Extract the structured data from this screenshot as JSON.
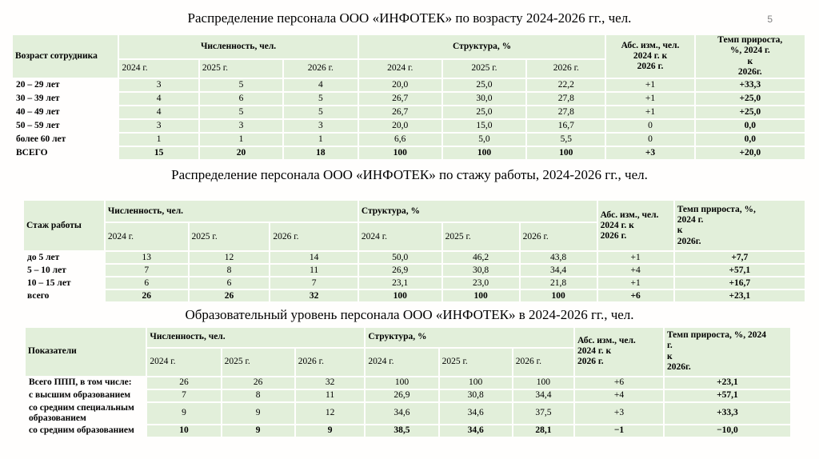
{
  "slide": {
    "page_number": "5",
    "background_color": "#fffefd",
    "cell_color": "#e2efda",
    "text_color": "#000000"
  },
  "tables": [
    {
      "title": "Распределение персонала ООО «ИНФОТЕК» по возрасту 2024-2026 гг., чел.",
      "label_header": "Возраст сотрудника",
      "group_count": "Численность, чел.",
      "group_structure": "Структура, %",
      "group_abs": "Абс. изм., чел.\n2024 г. к\n2026 г.",
      "group_rate": "Темп прироста,\n%, 2024 г.\nк\n2026г.",
      "years": [
        "2024 г.",
        "2025 г.",
        "2026 г.",
        "2024 г.",
        "2025 г.",
        "2026 г."
      ],
      "rows": [
        {
          "label": "20 – 29 лет",
          "values": [
            "3",
            "5",
            "4",
            "20,0",
            "25,0",
            "22,2",
            "+1",
            "+33,3"
          ],
          "bold": false
        },
        {
          "label": "30 – 39 лет",
          "values": [
            "4",
            "6",
            "5",
            "26,7",
            "30,0",
            "27,8",
            "+1",
            "+25,0"
          ],
          "bold": false
        },
        {
          "label": "40 – 49 лет",
          "values": [
            "4",
            "5",
            "5",
            "26,7",
            "25,0",
            "27,8",
            "+1",
            "+25,0"
          ],
          "bold": false
        },
        {
          "label": "50 – 59 лет",
          "values": [
            "3",
            "3",
            "3",
            "20,0",
            "15,0",
            "16,7",
            "0",
            "0,0"
          ],
          "bold": false
        },
        {
          "label": "более 60 лет",
          "values": [
            "1",
            "1",
            "1",
            "6,6",
            "5,0",
            "5,5",
            "0",
            "0,0"
          ],
          "bold": false
        },
        {
          "label": "ВСЕГО",
          "values": [
            "15",
            "20",
            "18",
            "100",
            "100",
            "100",
            "+3",
            "+20,0"
          ],
          "bold": true
        }
      ]
    },
    {
      "title": "Распределение персонала ООО «ИНФОТЕК» по стажу работы, 2024-2026 гг., чел.",
      "label_header": "Стаж работы",
      "group_count": "Численность, чел.",
      "group_structure": "Структура, %",
      "group_abs": "Абс. изм., чел.\n2024 г. к\n2026 г.",
      "group_rate": "Темп прироста, %,\n2024 г.\nк\n2026г.",
      "years": [
        "2024 г.",
        "2025 г.",
        "2026 г.",
        "2024 г.",
        "2025 г.",
        "2026 г."
      ],
      "rows": [
        {
          "label": "до 5 лет",
          "values": [
            "13",
            "12",
            "14",
            "50,0",
            "46,2",
            "43,8",
            "+1",
            "+7,7"
          ],
          "bold": false
        },
        {
          "label": "5 – 10 лет",
          "values": [
            "7",
            "8",
            "11",
            "26,9",
            "30,8",
            "34,4",
            "+4",
            "+57,1"
          ],
          "bold": false
        },
        {
          "label": "10 – 15 лет",
          "values": [
            "6",
            "6",
            "7",
            "23,1",
            "23,0",
            "21,8",
            "+1",
            "+16,7"
          ],
          "bold": false
        },
        {
          "label": "всего",
          "values": [
            "26",
            "26",
            "32",
            "100",
            "100",
            "100",
            "+6",
            "+23,1"
          ],
          "bold": true
        }
      ]
    },
    {
      "title": "Образовательный уровень персонала ООО «ИНФОТЕК» в 2024-2026 гг., чел.",
      "label_header": "Показатели",
      "group_count": "Численность, чел.",
      "group_structure": "Структура, %",
      "group_abs": "Абс. изм., чел.\n2024 г. к\n2026 г.",
      "group_rate": "Темп прироста, %, 2024\nг.\nк\n2026г.",
      "years": [
        "2024 г.",
        "2025 г.",
        "2026 г.",
        "2024 г.",
        "2025 г.",
        "2026 г."
      ],
      "rows": [
        {
          "label": "Всего ППП, в том числе:",
          "values": [
            "26",
            "26",
            "32",
            "100",
            "100",
            "100",
            "+6",
            "+23,1"
          ],
          "bold": false
        },
        {
          "label": "с высшим образованием",
          "values": [
            "7",
            "8",
            "11",
            "26,9",
            "30,8",
            "34,4",
            "+4",
            "+57,1"
          ],
          "bold": false
        },
        {
          "label": "со средним специальным образованием",
          "values": [
            "9",
            "9",
            "12",
            "34,6",
            "34,6",
            "37,5",
            "+3",
            "+33,3"
          ],
          "bold": false
        },
        {
          "label": "со средним образованием",
          "values": [
            "10",
            "9",
            "9",
            "38,5",
            "34,6",
            "28,1",
            "−1",
            "−10,0"
          ],
          "bold": true
        }
      ]
    }
  ]
}
